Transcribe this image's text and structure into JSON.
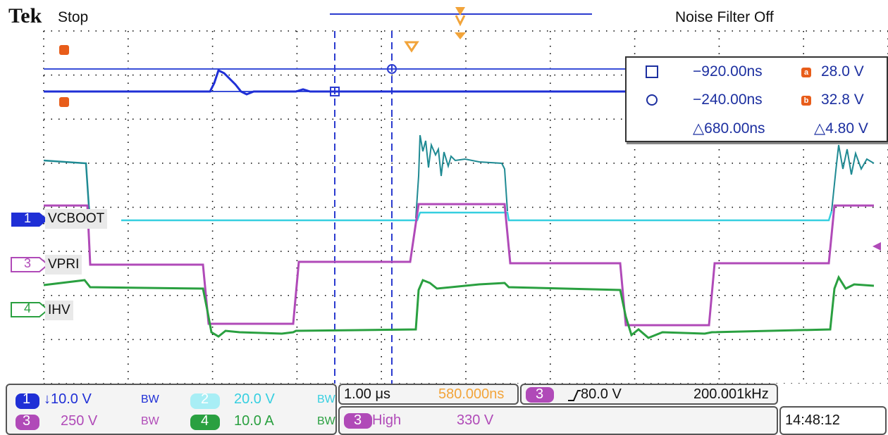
{
  "header": {
    "brand": "Tek",
    "run_status": "Stop",
    "noise_filter": "Noise Filter Off"
  },
  "channels": [
    {
      "number": "1",
      "label": "VCBOOT",
      "color": "#1f2fd6"
    },
    {
      "number": "3",
      "label": "VPRI",
      "color": "#b04ab8"
    },
    {
      "number": "4",
      "label": "IHV",
      "color": "#2aa040"
    }
  ],
  "cursor_readout": {
    "a_time": "−920.00ns",
    "b_time": "−240.00ns",
    "delta_time": "△680.00ns",
    "a_value": "28.0 V",
    "b_value": "32.8 V",
    "delta_value": "△4.80 V",
    "a_badge": "a",
    "b_badge": "b"
  },
  "bottom": {
    "ch1_number": "1",
    "ch1_scale": "↓10.0 V",
    "ch1_bw": "BW",
    "ch2_number": "2",
    "ch2_scale": "20.0 V",
    "ch2_bw": "BW",
    "ch3_number": "3",
    "ch3_scale": "250 V",
    "ch3_bw": "BW",
    "ch4_number": "4",
    "ch4_scale": "10.0 A",
    "ch4_bw": "BW",
    "timebase": "1.00 μs",
    "trigger_position": "580.000ns",
    "trigger_channel": "3",
    "trigger_level": "80.0 V",
    "frequency": "200.001kHz",
    "mode_channel": "3",
    "mode": "High",
    "mode_value": "330 V",
    "clock": "14:48:12"
  },
  "colors": {
    "ch1": "#1f2fd6",
    "ch2": "#36cfe0",
    "ch2_teal": "#1f8a93",
    "ch3": "#b04ab8",
    "ch4": "#2aa040",
    "cursor": "#2b3bcf",
    "trigger": "#f2a43a"
  }
}
